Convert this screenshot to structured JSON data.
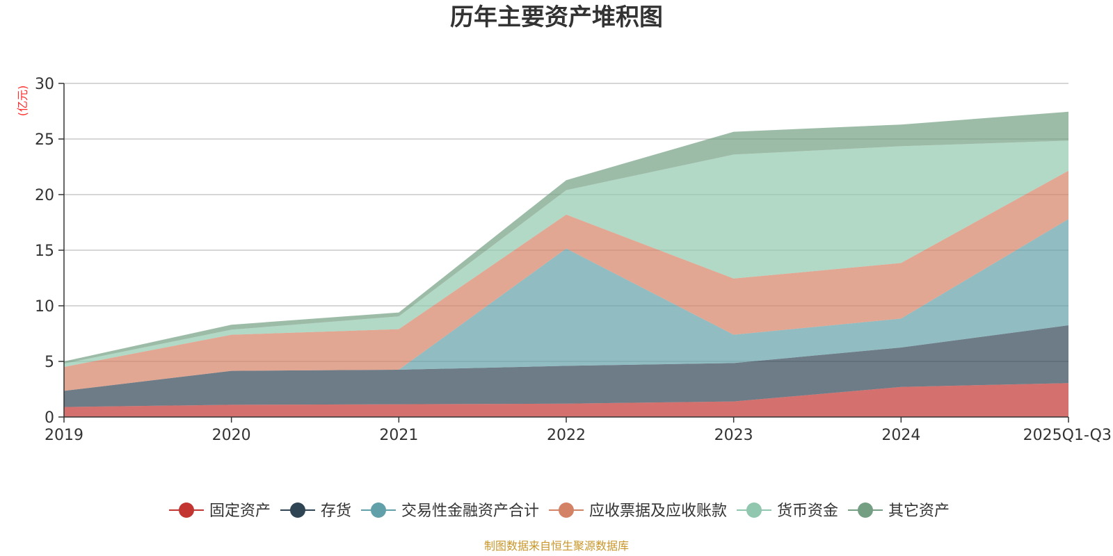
{
  "chart_data": {
    "type": "area",
    "stacked": true,
    "title": "历年主要资产堆积图",
    "ylabel": "(亿元)",
    "ylim": [
      0,
      30
    ],
    "yticks": [
      0,
      5,
      10,
      15,
      20,
      25,
      30
    ],
    "categories": [
      "2019",
      "2020",
      "2021",
      "2022",
      "2023",
      "2024",
      "2025Q1-Q3"
    ],
    "series": [
      {
        "name": "固定资产",
        "color": "#c23531",
        "values": [
          0.9,
          1.1,
          1.15,
          1.2,
          1.4,
          2.7,
          3.05
        ]
      },
      {
        "name": "存货",
        "color": "#2f4554",
        "values": [
          1.45,
          3.05,
          3.1,
          3.4,
          3.45,
          3.55,
          5.2
        ]
      },
      {
        "name": "交易性金融资产合计",
        "color": "#61a0a8",
        "values": [
          0.0,
          0.0,
          0.0,
          10.55,
          2.55,
          2.6,
          9.55
        ]
      },
      {
        "name": "应收票据及应收账款",
        "color": "#d48265",
        "values": [
          2.15,
          3.25,
          3.65,
          3.05,
          5.05,
          5.0,
          4.35
        ]
      },
      {
        "name": "货币资金",
        "color": "#91c7ae",
        "values": [
          0.3,
          0.45,
          1.15,
          2.2,
          11.15,
          10.5,
          2.7
        ]
      },
      {
        "name": "其它资产",
        "color": "#749f83",
        "values": [
          0.2,
          0.45,
          0.35,
          0.9,
          2.05,
          1.95,
          2.6
        ]
      }
    ],
    "legend_position": "bottom-center",
    "grid": true
  },
  "footer": {
    "source": "制图数据来自恒生聚源数据库"
  }
}
